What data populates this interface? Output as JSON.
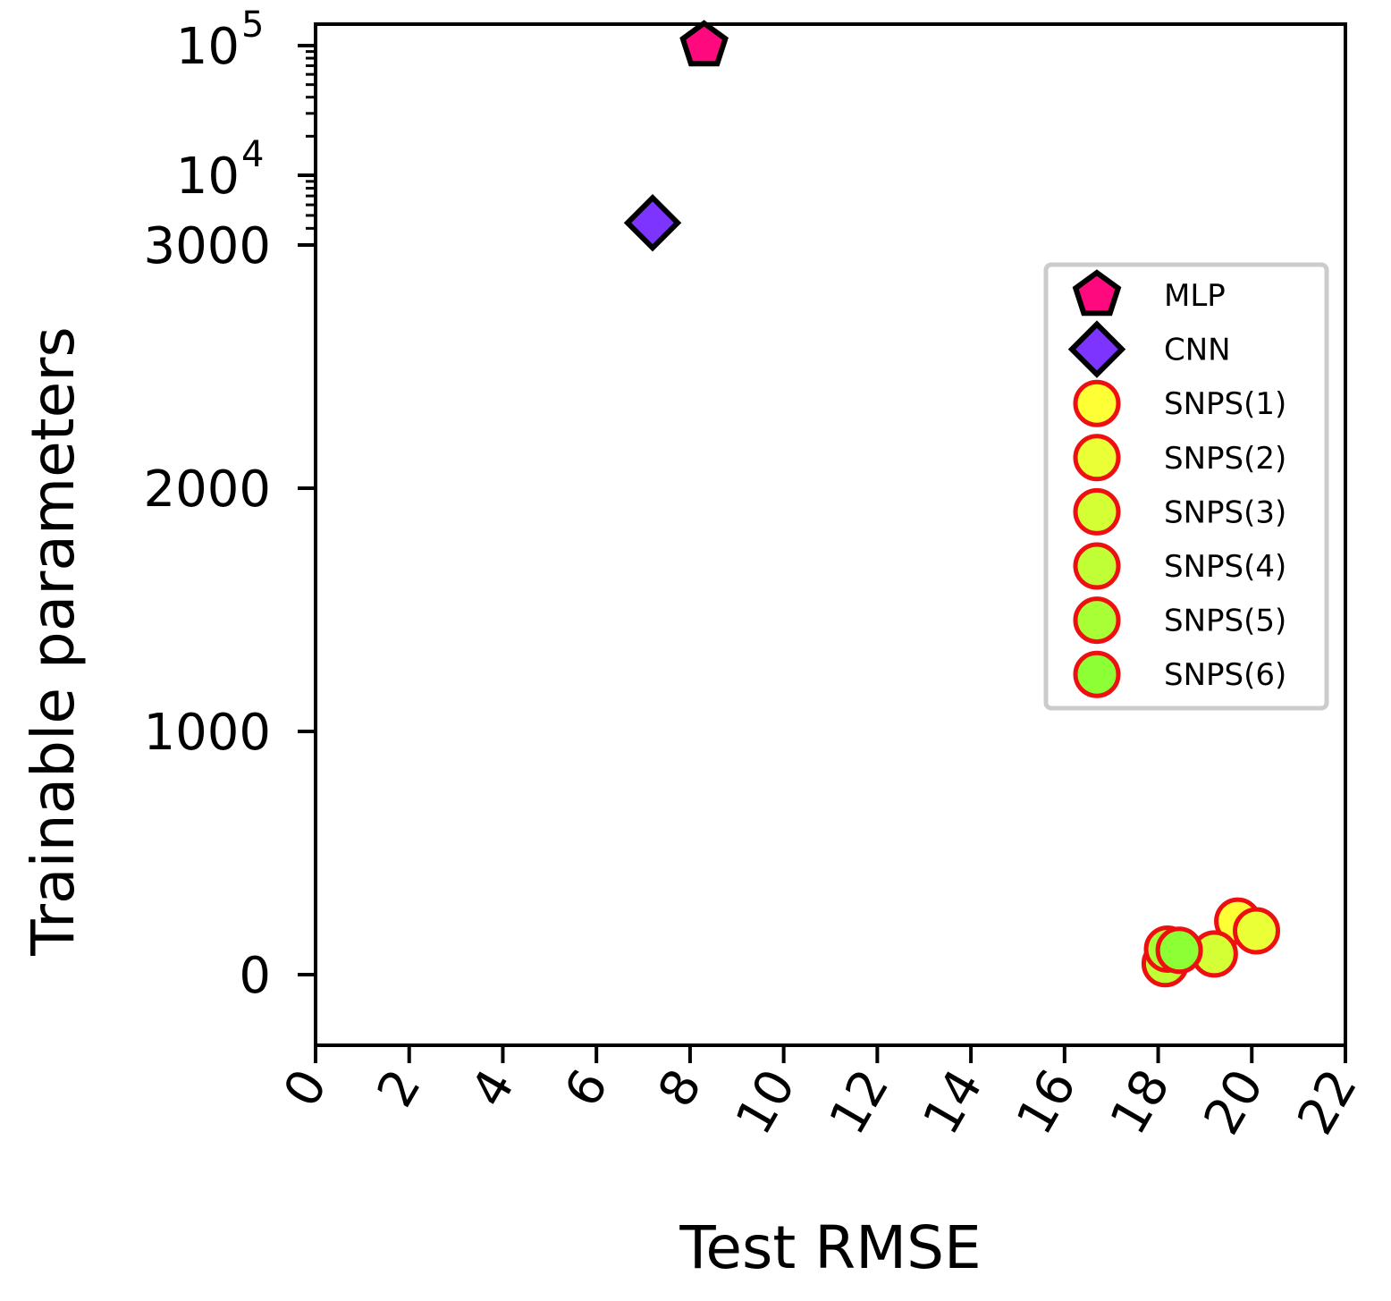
{
  "chart_data": {
    "type": "scatter",
    "xlabel": "Test RMSE",
    "ylabel": "Trainable parameters",
    "xlim": [
      0,
      22
    ],
    "x_ticks": [
      "0",
      "2",
      "4",
      "6",
      "8",
      "10",
      "12",
      "14",
      "16",
      "18",
      "20",
      "22"
    ],
    "y_scale": "symlog (linear below 3000, log above)",
    "ylim": [
      -300,
      120000
    ],
    "y_ticks": [
      {
        "value": 0,
        "label": "0"
      },
      {
        "value": 1000,
        "label": "1000"
      },
      {
        "value": 2000,
        "label": "2000"
      },
      {
        "value": 3000,
        "label": "3000"
      },
      {
        "value": 10000,
        "label": "10",
        "exp": "4"
      },
      {
        "value": 100000,
        "label": "10",
        "exp": "5"
      }
    ],
    "legend_position": "right",
    "series": [
      {
        "name": "MLP",
        "marker": "pentagon",
        "fill": "#ff0a7e",
        "stroke": "#000000",
        "points": [
          {
            "x": 8.3,
            "y": 100000
          }
        ]
      },
      {
        "name": "CNN",
        "marker": "diamond",
        "fill": "#7d34ff",
        "stroke": "#000000",
        "points": [
          {
            "x": 7.2,
            "y": 4400
          }
        ]
      },
      {
        "name": "SNPS(1)",
        "marker": "circle",
        "fill": "#ffff35",
        "stroke": "#ee1010",
        "points": [
          {
            "x": 19.7,
            "y": 220
          }
        ]
      },
      {
        "name": "SNPS(2)",
        "marker": "circle",
        "fill": "#eaff35",
        "stroke": "#ee1010",
        "points": [
          {
            "x": 20.1,
            "y": 180
          }
        ]
      },
      {
        "name": "SNPS(3)",
        "marker": "circle",
        "fill": "#d5ff35",
        "stroke": "#ee1010",
        "points": [
          {
            "x": 19.2,
            "y": 85
          }
        ]
      },
      {
        "name": "SNPS(4)",
        "marker": "circle",
        "fill": "#c0ff35",
        "stroke": "#ee1010",
        "points": [
          {
            "x": 18.15,
            "y": 45
          }
        ]
      },
      {
        "name": "SNPS(5)",
        "marker": "circle",
        "fill": "#a8ff35",
        "stroke": "#ee1010",
        "points": [
          {
            "x": 18.2,
            "y": 105
          }
        ]
      },
      {
        "name": "SNPS(6)",
        "marker": "circle",
        "fill": "#8cff35",
        "stroke": "#ee1010",
        "points": [
          {
            "x": 18.45,
            "y": 100
          }
        ]
      }
    ]
  }
}
